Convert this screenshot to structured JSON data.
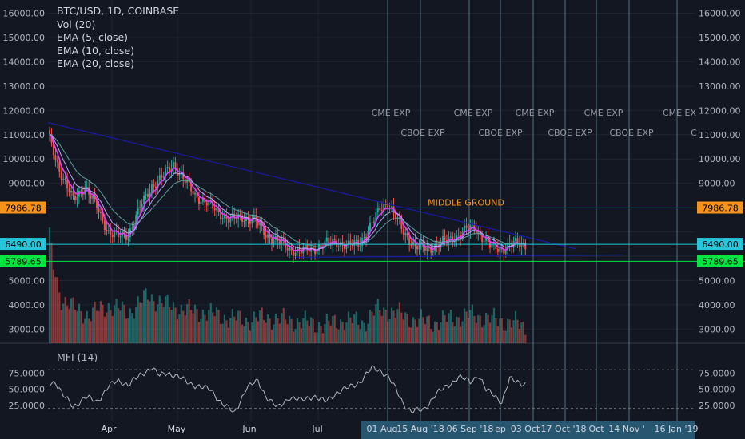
{
  "legend": {
    "symbol": "BTC/USD, 1D, COINBASE",
    "vol": "Vol (20)",
    "ema5": "EMA (5, close)",
    "ema10": "EMA (10, close)",
    "ema20": "EMA (20, close)"
  },
  "mfi_label": "MFI (14)",
  "colors": {
    "background": "#131722",
    "grid": "#1e2433",
    "up": "#26a69a",
    "down": "#ef5350",
    "ema5": "#e040fb",
    "ema10": "#b9a6f5",
    "ema20": "#5e9ea0",
    "trendline": "#1a1aa8",
    "middle_ground": "#f7931a",
    "line_6490": "#26c6da",
    "line_5789": "#00e640",
    "event_line": "#5c8a9a",
    "mfi": "#b2b5be"
  },
  "chart_data": {
    "type": "candlestick",
    "price_axis": {
      "ticks": [
        "16000.00",
        "15000.00",
        "14000.00",
        "13000.00",
        "12000.00",
        "11000.00",
        "10000.00",
        "9000.00",
        "5000.00",
        "4000.00",
        "3000.00"
      ],
      "ylim": [
        2500,
        16500
      ]
    },
    "x_axis": {
      "ticks": [
        "Apr",
        "May",
        "Jun",
        "Jul",
        "01 Aug",
        "15 Aug '18",
        "06 Sep '18",
        "ep",
        "03 Oct",
        "17 Oct '18",
        "Oct",
        "14 Nov '",
        "16 Jan '19"
      ]
    },
    "price_labels": [
      {
        "label": "7986.78",
        "value": 7986.78,
        "color": "#f7931a"
      },
      {
        "label": "6490.00",
        "value": 6490.0,
        "color": "#26c6da"
      },
      {
        "label": "5789.65",
        "value": 5789.65,
        "color": "#00e640"
      }
    ],
    "annotations": [
      {
        "text": "MIDDLE GROUND",
        "value": 7986.78,
        "color": "#f7931a"
      },
      {
        "text": "CME EXP",
        "row": 1
      },
      {
        "text": "CBOE EXP",
        "row": 2
      },
      {
        "text": "CME EXP",
        "row": 1
      },
      {
        "text": "CBOE EXP",
        "row": 2
      },
      {
        "text": "CME EXP",
        "row": 1
      },
      {
        "text": "CBOE EXP",
        "row": 2
      },
      {
        "text": "CME EXP",
        "row": 1
      },
      {
        "text": "CBOE EXP",
        "row": 2
      },
      {
        "text": "CME EX",
        "row": 1
      },
      {
        "text": "C",
        "row": 2
      }
    ],
    "trendline": {
      "from": 11500,
      "to": 6300
    },
    "close_anchors": [
      [
        0,
        10800
      ],
      [
        4,
        9800
      ],
      [
        8,
        9000
      ],
      [
        12,
        8300
      ],
      [
        18,
        8900
      ],
      [
        24,
        8000
      ],
      [
        30,
        7000
      ],
      [
        35,
        6800
      ],
      [
        40,
        6900
      ],
      [
        46,
        8000
      ],
      [
        52,
        8900
      ],
      [
        58,
        9300
      ],
      [
        63,
        9800
      ],
      [
        68,
        9200
      ],
      [
        74,
        8500
      ],
      [
        80,
        8200
      ],
      [
        86,
        7800
      ],
      [
        92,
        7500
      ],
      [
        98,
        7600
      ],
      [
        104,
        7500
      ],
      [
        110,
        6900
      ],
      [
        116,
        6600
      ],
      [
        122,
        6300
      ],
      [
        128,
        6200
      ],
      [
        134,
        6300
      ],
      [
        140,
        6500
      ],
      [
        146,
        6600
      ],
      [
        152,
        6400
      ],
      [
        158,
        6600
      ],
      [
        164,
        7300
      ],
      [
        168,
        8000
      ],
      [
        172,
        8200
      ],
      [
        176,
        7600
      ],
      [
        180,
        7000
      ],
      [
        186,
        6400
      ],
      [
        192,
        6300
      ],
      [
        198,
        6500
      ],
      [
        204,
        6700
      ],
      [
        210,
        7000
      ],
      [
        216,
        7200
      ],
      [
        220,
        6800
      ],
      [
        224,
        6400
      ],
      [
        230,
        6300
      ],
      [
        236,
        6500
      ],
      [
        242,
        6500
      ]
    ],
    "volume_axis": {
      "ylim": [
        2200,
        7200
      ]
    },
    "volume_anchors": [
      [
        0,
        6700
      ],
      [
        2,
        5500
      ],
      [
        6,
        4200
      ],
      [
        12,
        3800
      ],
      [
        20,
        3500
      ],
      [
        30,
        3900
      ],
      [
        40,
        3600
      ],
      [
        50,
        4300
      ],
      [
        60,
        3900
      ],
      [
        70,
        3700
      ],
      [
        80,
        3600
      ],
      [
        90,
        3400
      ],
      [
        100,
        3300
      ],
      [
        110,
        3400
      ],
      [
        120,
        3300
      ],
      [
        130,
        3200
      ],
      [
        140,
        3100
      ],
      [
        150,
        3300
      ],
      [
        160,
        3200
      ],
      [
        166,
        3700
      ],
      [
        170,
        3700
      ],
      [
        176,
        3600
      ],
      [
        186,
        3300
      ],
      [
        196,
        3200
      ],
      [
        206,
        3400
      ],
      [
        216,
        3500
      ],
      [
        226,
        3300
      ],
      [
        236,
        3200
      ],
      [
        242,
        3000
      ]
    ],
    "mfi_axis": {
      "ticks": [
        "75.0000",
        "50.0000",
        "25.0000"
      ],
      "ylim": [
        0,
        100
      ],
      "levels": [
        80,
        20
      ]
    },
    "mfi_anchors": [
      [
        0,
        58
      ],
      [
        3,
        62
      ],
      [
        7,
        40
      ],
      [
        12,
        22
      ],
      [
        18,
        38
      ],
      [
        24,
        30
      ],
      [
        30,
        55
      ],
      [
        35,
        62
      ],
      [
        40,
        58
      ],
      [
        46,
        70
      ],
      [
        52,
        85
      ],
      [
        56,
        70
      ],
      [
        60,
        75
      ],
      [
        64,
        72
      ],
      [
        70,
        60
      ],
      [
        76,
        55
      ],
      [
        82,
        48
      ],
      [
        88,
        28
      ],
      [
        94,
        12
      ],
      [
        100,
        52
      ],
      [
        106,
        62
      ],
      [
        110,
        40
      ],
      [
        116,
        20
      ],
      [
        122,
        38
      ],
      [
        128,
        32
      ],
      [
        134,
        40
      ],
      [
        140,
        30
      ],
      [
        146,
        45
      ],
      [
        152,
        52
      ],
      [
        158,
        62
      ],
      [
        164,
        82
      ],
      [
        168,
        80
      ],
      [
        172,
        70
      ],
      [
        176,
        50
      ],
      [
        180,
        28
      ],
      [
        184,
        15
      ],
      [
        190,
        18
      ],
      [
        196,
        40
      ],
      [
        202,
        55
      ],
      [
        208,
        68
      ],
      [
        214,
        62
      ],
      [
        218,
        72
      ],
      [
        222,
        48
      ],
      [
        226,
        42
      ],
      [
        230,
        30
      ],
      [
        234,
        65
      ],
      [
        238,
        62
      ],
      [
        242,
        58
      ]
    ]
  }
}
